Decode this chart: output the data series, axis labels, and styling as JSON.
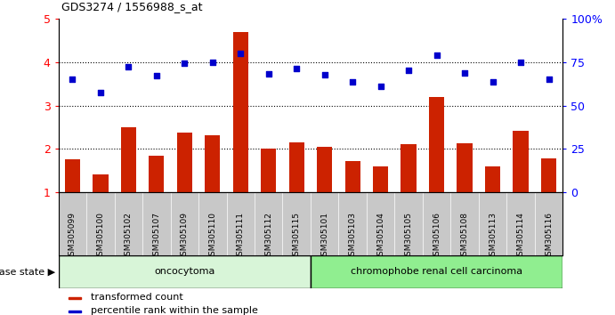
{
  "title": "GDS3274 / 1556988_s_at",
  "samples": [
    "GSM305099",
    "GSM305100",
    "GSM305102",
    "GSM305107",
    "GSM305109",
    "GSM305110",
    "GSM305111",
    "GSM305112",
    "GSM305115",
    "GSM305101",
    "GSM305103",
    "GSM305104",
    "GSM305105",
    "GSM305106",
    "GSM305108",
    "GSM305113",
    "GSM305114",
    "GSM305116"
  ],
  "transformed_count": [
    1.75,
    1.4,
    2.5,
    1.85,
    2.38,
    2.32,
    4.7,
    2.0,
    2.15,
    2.05,
    1.72,
    1.6,
    2.1,
    3.2,
    2.12,
    1.6,
    2.42,
    1.78
  ],
  "percentile_rank": [
    3.6,
    3.3,
    3.9,
    3.7,
    3.97,
    4.0,
    4.2,
    3.73,
    3.85,
    3.72,
    3.55,
    3.45,
    3.82,
    4.17,
    3.75,
    3.55,
    4.0,
    3.6
  ],
  "bar_color": "#cc2200",
  "dot_color": "#0000cc",
  "oncocytoma_count": 9,
  "chromophobe_count": 9,
  "oncocytoma_label": "oncocytoma",
  "chromophobe_label": "chromophobe renal cell carcinoma",
  "disease_state_label": "disease state",
  "legend_bar_label": "transformed count",
  "legend_dot_label": "percentile rank within the sample",
  "ylim_left": [
    1,
    5
  ],
  "ylim_right": [
    0,
    100
  ],
  "yticks_left": [
    1,
    2,
    3,
    4,
    5
  ],
  "yticks_right": [
    0,
    25,
    50,
    75,
    100
  ],
  "ytick_labels_right": [
    "0",
    "25",
    "50",
    "75",
    "100%"
  ],
  "background_color": "#ffffff",
  "group_bg_color_oc": "#d8f5d8",
  "group_bg_color_ch": "#90ee90",
  "tick_area_color": "#c8c8c8"
}
